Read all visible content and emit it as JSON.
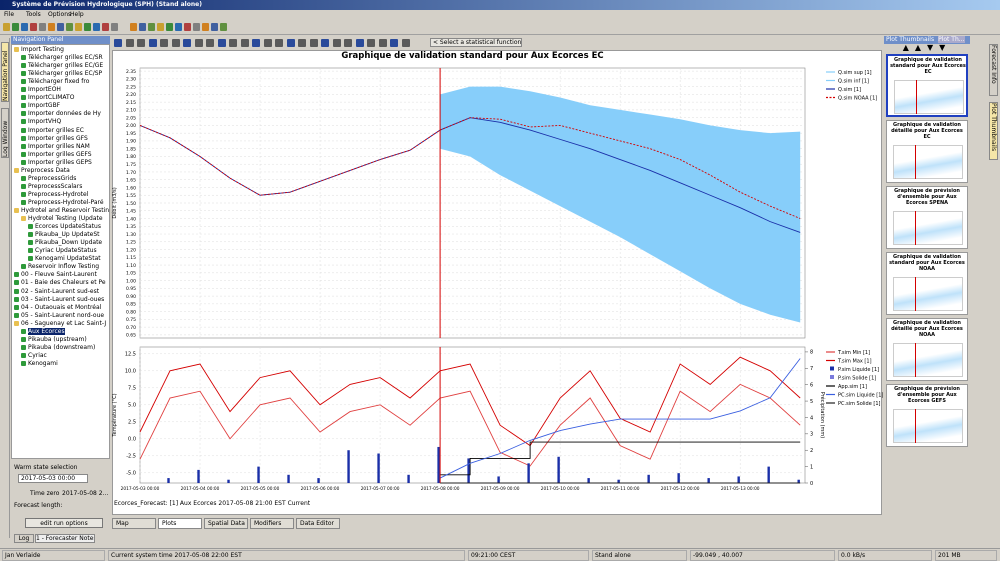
{
  "window": {
    "title": "Système de Prévision Hydrologique (SPH) (Stand alone)",
    "menu": [
      "File",
      "Tools",
      "Options",
      "Help"
    ]
  },
  "toolbar": {
    "statistic_select": "< Select a statistical function >"
  },
  "navigation": {
    "header": "Navigation Panel",
    "side_tabs": [
      "Navigation Panel",
      "Log Window"
    ],
    "tree": [
      {
        "label": "Import Testing",
        "children": [
          {
            "label": "Télécharger grilles EC/SR"
          },
          {
            "label": "Télécharger grilles EC/GE"
          },
          {
            "label": "Télécharger grilles EC/SP"
          },
          {
            "label": "Télécharger fixed fro"
          },
          {
            "label": "ImportEOH"
          },
          {
            "label": "ImportCLIMATO"
          },
          {
            "label": "ImportGBF"
          },
          {
            "label": "Importer données de Hy"
          },
          {
            "label": "ImportVHQ"
          },
          {
            "label": "Importer grilles EC"
          },
          {
            "label": "Importer grilles GFS"
          },
          {
            "label": "Importer grilles NAM"
          },
          {
            "label": "Importer grilles GEFS"
          },
          {
            "label": "Importer grilles GEPS"
          }
        ]
      },
      {
        "label": "Preprocess Data",
        "children": [
          {
            "label": "PreprocessGrids"
          },
          {
            "label": "PreprocessScalars"
          },
          {
            "label": "Preprocess-Hydrotel"
          },
          {
            "label": "Preprocess-Hydrotel-Paré"
          }
        ]
      },
      {
        "label": "Hydrotel and Reservoir Testing",
        "children": [
          {
            "label": "Hydrotel Testing (Update",
            "children": [
              {
                "label": "Ecorces UpdateStatus"
              },
              {
                "label": "Pikauba_Up UpdateSt"
              },
              {
                "label": "Pikauba_Down Update"
              },
              {
                "label": "Cyriac UpdateStatus"
              },
              {
                "label": "Kenogami UpdateStat"
              }
            ]
          },
          {
            "label": "Reservoir Inflow Testing"
          }
        ]
      },
      {
        "label": "00 - Fleuve Saint-Laurent"
      },
      {
        "label": "01 - Baie des Chaleurs et Pe"
      },
      {
        "label": "02 - Saint-Laurent sud-est"
      },
      {
        "label": "03 - Saint-Laurent sud-oues"
      },
      {
        "label": "04 - Outaouais et Montréal"
      },
      {
        "label": "05 - Saint-Laurent nord-oue"
      },
      {
        "label": "06 - Saguenay et Lac Saint-J",
        "children": [
          {
            "label": "Aux Ecorces",
            "selected": true
          },
          {
            "label": "Pikauba (upstream)"
          },
          {
            "label": "Pikauba (downstream)"
          },
          {
            "label": "Cyriac"
          },
          {
            "label": "Kenogami"
          }
        ]
      }
    ],
    "warm_state": {
      "label": "Warm state selection",
      "value": "2017-05-03 00:00"
    },
    "time_zero": {
      "label": "Time zero:",
      "value": "2017-05-08 2..."
    },
    "forecast_length": "Forecast length:",
    "button": "edit run options",
    "bottom_tabs": [
      "Log",
      "1 - Forecaster Notes"
    ]
  },
  "plot_panel": {
    "status": "Ecorces_Forecast: [1] Aux Ecorces 2017-05-08 21:00 EST Current",
    "tabs": [
      "Map",
      "Plots",
      "Spatial Data",
      "Modifiers",
      "Data Editor"
    ]
  },
  "chart_data": [
    {
      "type": "line",
      "title": "Graphique de validation standard pour Aux Ecorces EC",
      "y_label": "Débit (m3/s)",
      "grid": true,
      "marker_x": 5,
      "marker_color": "#d40000",
      "x": [
        0,
        0.5,
        1,
        1.5,
        2,
        2.5,
        3,
        3.5,
        4,
        4.5,
        5,
        5.5,
        6,
        6.5,
        7,
        7.5,
        8,
        8.5,
        9,
        9.5,
        10,
        10.5,
        11
      ],
      "xlim": [
        0,
        11.08
      ],
      "ylim": [
        0.63,
        2.37
      ],
      "yticks": [
        0.65,
        {
          "value": 0.7,
          "label": "0.70"
        },
        0.75,
        {
          "value": 0.8,
          "label": "0.80"
        },
        0.85,
        {
          "value": 0.9,
          "label": "0.90"
        },
        0.95,
        {
          "value": 1,
          "label": "1.00"
        },
        1.05,
        {
          "value": 1.1,
          "label": "1.10"
        },
        1.15,
        {
          "value": 1.2,
          "label": "1.20"
        },
        1.25,
        {
          "value": 1.3,
          "label": "1.30"
        },
        1.35,
        {
          "value": 1.4,
          "label": "1.40"
        },
        1.45,
        {
          "value": 1.5,
          "label": "1.50"
        },
        1.55,
        {
          "value": 1.6,
          "label": "1.60"
        },
        1.65,
        {
          "value": 1.7,
          "label": "1.70"
        },
        1.75,
        {
          "value": 1.8,
          "label": "1.80"
        },
        1.85,
        {
          "value": 1.9,
          "label": "1.90"
        },
        1.95,
        {
          "value": 2,
          "label": "2.00"
        },
        2.05,
        {
          "value": 2.1,
          "label": "2.10"
        },
        2.15,
        {
          "value": 2.2,
          "label": "2.20"
        },
        2.25,
        {
          "value": 2.3,
          "label": "2.30"
        },
        2.35
      ],
      "series": [
        {
          "name": "Q.sim sup [1]",
          "color": "#87cefa",
          "kind": "band",
          "values": [
            null,
            null,
            null,
            null,
            null,
            null,
            null,
            null,
            null,
            null,
            2.2,
            2.25,
            2.25,
            2.22,
            2.18,
            2.13,
            2.1,
            2.07,
            2.04,
            2.0,
            1.97,
            1.95,
            1.96
          ]
        },
        {
          "name": "Q.sim inf [1]",
          "color": "#87cefa",
          "kind": "band",
          "values": [
            null,
            null,
            null,
            null,
            null,
            null,
            null,
            null,
            null,
            null,
            1.85,
            1.8,
            1.68,
            1.58,
            1.48,
            1.38,
            1.28,
            1.17,
            1.06,
            0.95,
            0.85,
            0.78,
            0.73
          ]
        },
        {
          "name": "Q.sim [1]",
          "color": "#1a2fa8",
          "kind": "line",
          "values": [
            2.0,
            1.92,
            1.8,
            1.66,
            1.55,
            1.57,
            1.64,
            1.71,
            1.78,
            1.84,
            1.97,
            2.05,
            2.02,
            1.97,
            1.91,
            1.85,
            1.78,
            1.71,
            1.63,
            1.55,
            1.47,
            1.38,
            1.31
          ]
        },
        {
          "name": "Q.sim NOAA [1]",
          "color": "#d40000",
          "kind": "dash",
          "values": [
            2.0,
            1.92,
            1.8,
            1.66,
            1.55,
            1.57,
            1.64,
            1.71,
            1.78,
            1.84,
            1.97,
            2.05,
            2.04,
            1.99,
            2.0,
            1.95,
            1.9,
            1.85,
            1.78,
            1.68,
            1.57,
            1.48,
            1.4
          ]
        }
      ]
    },
    {
      "type": "line",
      "y_label": "Température (°C)",
      "y2_label": "Précipitation (mm)",
      "grid": true,
      "marker_x": 5,
      "marker_color": "#d40000",
      "x": [
        0,
        0.5,
        1,
        1.5,
        2,
        2.5,
        3,
        3.5,
        4,
        4.5,
        5,
        5.5,
        6,
        6.5,
        7,
        7.5,
        8,
        8.5,
        9,
        9.5,
        10,
        10.5,
        11
      ],
      "xlim": [
        0,
        11.08
      ],
      "ylim": [
        -6.5,
        13.5
      ],
      "y2lim": [
        0,
        8.3
      ],
      "xticks": [
        {
          "value": 0,
          "label": "2017-05-03 00:00"
        },
        {
          "value": 1,
          "label": "2017-05-04 00:00"
        },
        {
          "value": 2,
          "label": "2017-05-05 00:00"
        },
        {
          "value": 3,
          "label": "2017-05-06 00:00"
        },
        {
          "value": 4,
          "label": "2017-05-07 00:00"
        },
        {
          "value": 5,
          "label": "2017-05-08 00:00"
        },
        {
          "value": 6,
          "label": "2017-05-09 00:00"
        },
        {
          "value": 7,
          "label": "2017-05-10 00:00"
        },
        {
          "value": 8,
          "label": "2017-05-11 00:00"
        },
        {
          "value": 9,
          "label": "2017-05-12 00:00"
        },
        {
          "value": 10,
          "label": "2017-05-13 00:00"
        }
      ],
      "yticks": [
        {
          "value": -5,
          "label": "-5.0"
        },
        -2.5,
        {
          "value": 0,
          "label": "0.0"
        },
        2.5,
        {
          "value": 5,
          "label": "5.0"
        },
        7.5,
        {
          "value": 10,
          "label": "10.0"
        },
        12.5
      ],
      "y2ticks": [
        0,
        1,
        2,
        3,
        4,
        5,
        6,
        7,
        8
      ],
      "series": [
        {
          "name": "T.sim Min [1]",
          "color": "#e04040",
          "kind": "line",
          "values": [
            -3,
            6,
            7,
            0,
            5,
            6,
            1,
            4,
            5,
            2,
            6,
            7,
            -2,
            -4,
            2,
            6,
            -1,
            -3,
            7,
            4,
            8,
            6,
            2
          ]
        },
        {
          "name": "T.sim Max [1]",
          "color": "#d40000",
          "kind": "line",
          "values": [
            1,
            10,
            11,
            4,
            9,
            10,
            5,
            8,
            9,
            6,
            10,
            11,
            2,
            -1,
            6,
            10,
            3,
            1,
            11,
            8,
            12,
            10,
            6
          ]
        },
        {
          "name": "P.sim Liquide [1]",
          "color": "#1a2fa8",
          "kind": "bar",
          "axis": "y2",
          "values": [
            0,
            0.3,
            0.8,
            0.2,
            1.0,
            0.5,
            0.3,
            2.0,
            1.8,
            0.5,
            2.2,
            1.5,
            0.4,
            1.2,
            1.6,
            0.3,
            0.2,
            0.5,
            0.6,
            0.3,
            0.4,
            1.0,
            0.2
          ]
        },
        {
          "name": "P.sim Solide [1]",
          "color": "#7a7adc",
          "kind": "bar",
          "axis": "y2",
          "values": [
            0,
            0,
            0,
            0,
            0,
            0,
            0,
            0,
            0,
            0,
            0,
            0,
            0,
            0,
            0,
            0,
            0,
            0,
            0,
            0,
            0,
            0,
            0
          ]
        },
        {
          "name": "App.sim [1]",
          "color": "#000000",
          "kind": "step",
          "axis": "y2",
          "values": [
            null,
            null,
            null,
            null,
            null,
            null,
            null,
            null,
            null,
            null,
            0.5,
            1.5,
            1.5,
            2.5,
            2.5,
            2.5,
            2.5,
            2.5,
            2.5,
            2.5,
            2.5,
            2.5,
            2.5
          ]
        },
        {
          "name": "PC.sim Liquide [1]",
          "color": "#3a5fe0",
          "kind": "line",
          "axis": "y2",
          "values": [
            null,
            null,
            null,
            null,
            null,
            null,
            null,
            null,
            null,
            null,
            0.3,
            1.2,
            1.8,
            2.6,
            3.2,
            3.6,
            3.9,
            3.9,
            3.9,
            3.9,
            4.4,
            5.2,
            7.6
          ]
        },
        {
          "name": "PC.sim Solide [1]",
          "color": "#202020",
          "kind": "line",
          "axis": "y2",
          "values": [
            null,
            null,
            null,
            null,
            null,
            null,
            null,
            null,
            null,
            null,
            0,
            0,
            0,
            0,
            0,
            0,
            0,
            0,
            0,
            0,
            0,
            0,
            0
          ]
        }
      ]
    }
  ],
  "thumbnails": {
    "header": "Plot Thumbnails",
    "tab": "Plot Th...",
    "items": [
      "Graphique de validation standard pour Aux Ecorces EC",
      "Graphique de validation détaillé pour Aux Ecorces EC",
      "Graphique de prévision d'ensemble pour Aux Ecorces SPENA",
      "Graphique de validation standard pour Aux Ecorces NOAA",
      "Graphique de validation détaillé pour Aux Ecorces NOAA",
      "Graphique de prévision d'ensemble pour Aux Ecorces GEFS"
    ]
  },
  "right_tabs": [
    "Forecast Info",
    "Plot Thumbnails"
  ],
  "status_bar": [
    "Jan Verlaide",
    "Current system time 2017-05-08 22:00 EST",
    "09:21:00 CEST",
    "Stand alone",
    "-99.049 , 40.007",
    "0.0 kB/s",
    "201 MB"
  ]
}
